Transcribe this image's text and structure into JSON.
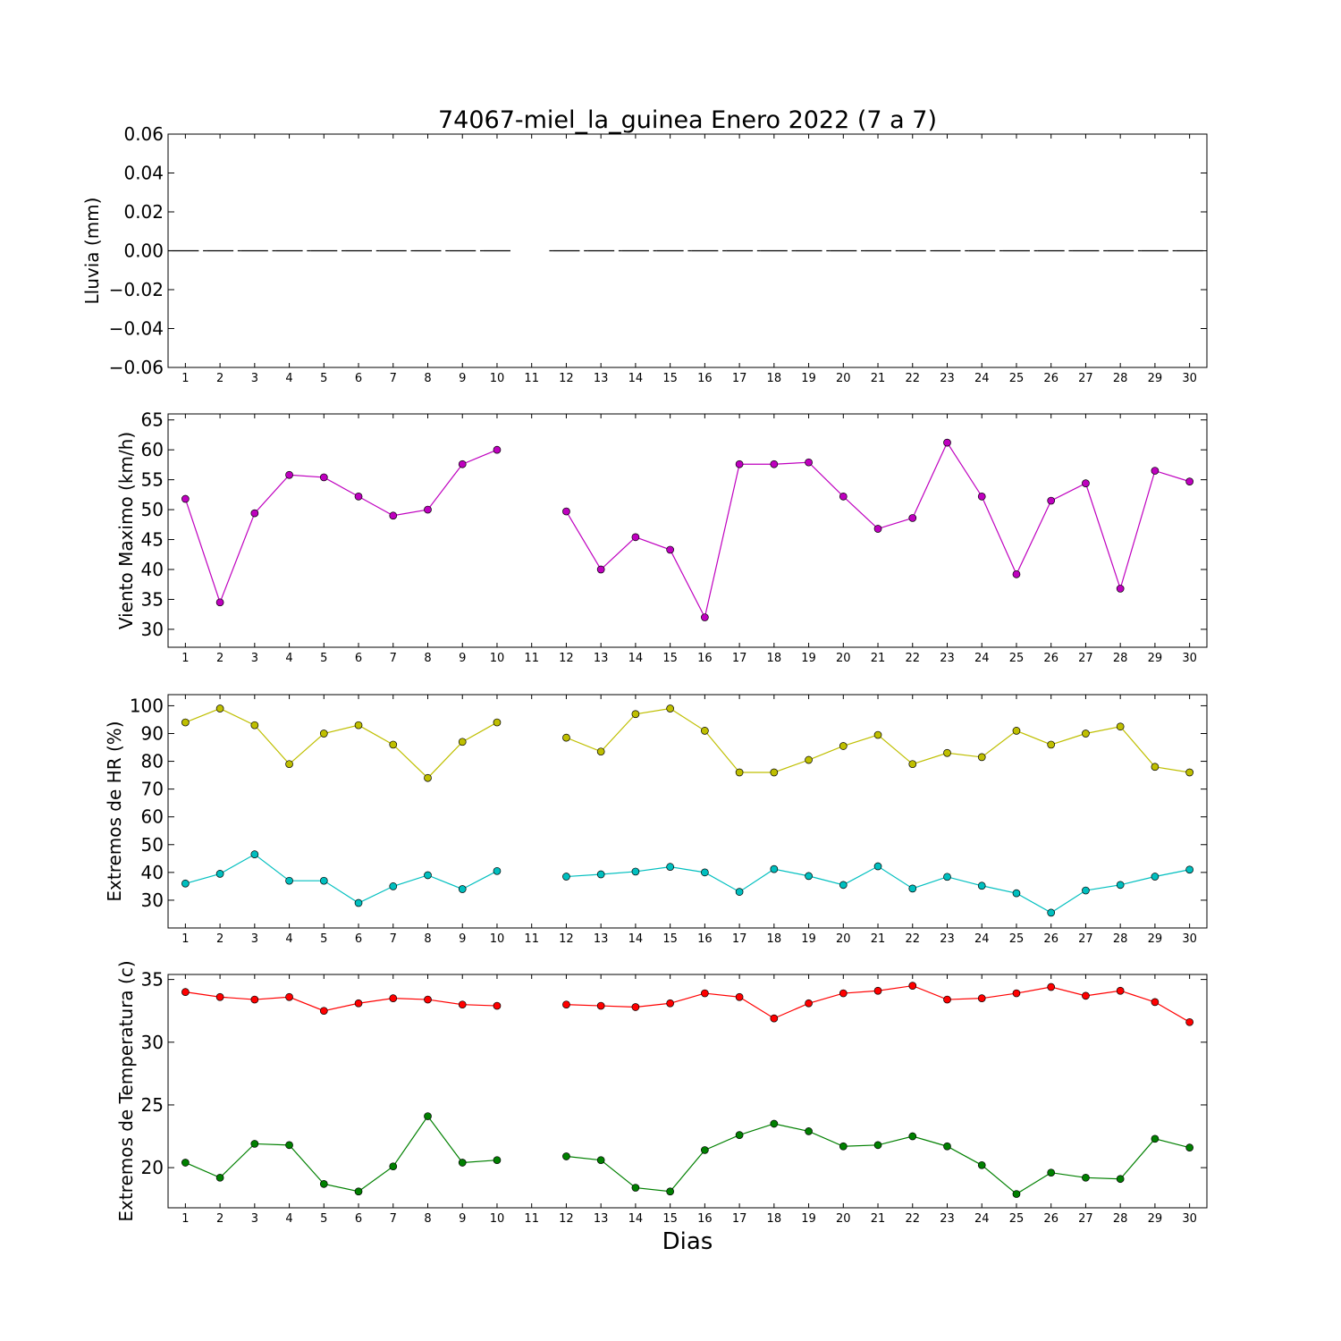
{
  "figure": {
    "title": "74067-miel_la_guinea Enero 2022  (7 a 7)",
    "xlabel": "Dias"
  },
  "chart_data": [
    {
      "type": "bar",
      "ylabel": "Lluvia (mm)",
      "categories": [
        1,
        2,
        3,
        4,
        5,
        6,
        7,
        8,
        9,
        10,
        11,
        12,
        13,
        14,
        15,
        16,
        17,
        18,
        19,
        20,
        21,
        22,
        23,
        24,
        25,
        26,
        27,
        28,
        29,
        30
      ],
      "ylim": [
        -0.06,
        0.06
      ],
      "yticks": [
        -0.06,
        -0.04,
        -0.02,
        0.0,
        0.02,
        0.04,
        0.06
      ],
      "ytick_labels": [
        "−0.06",
        "−0.04",
        "−0.02",
        "0.00",
        "0.02",
        "0.04",
        "0.06"
      ],
      "series": [
        {
          "color": "#000000",
          "values": [
            0,
            0,
            0,
            0,
            0,
            0,
            0,
            0,
            0,
            0,
            null,
            0,
            0,
            0,
            0,
            0,
            0,
            0,
            0,
            0,
            0,
            0,
            0,
            0,
            0,
            0,
            0,
            0,
            0,
            0
          ]
        }
      ]
    },
    {
      "type": "line",
      "ylabel": "Viento Maximo (km/h)",
      "x": [
        1,
        2,
        3,
        4,
        5,
        6,
        7,
        8,
        9,
        10,
        11,
        12,
        13,
        14,
        15,
        16,
        17,
        18,
        19,
        20,
        21,
        22,
        23,
        24,
        25,
        26,
        27,
        28,
        29,
        30
      ],
      "ylim": [
        27,
        66
      ],
      "yticks": [
        30,
        35,
        40,
        45,
        50,
        55,
        60,
        65
      ],
      "ytick_labels": [
        "30",
        "35",
        "40",
        "45",
        "50",
        "55",
        "60",
        "65"
      ],
      "series": [
        {
          "color": "#bf00bf",
          "values": [
            51.8,
            34.5,
            49.4,
            55.8,
            55.4,
            52.2,
            49.0,
            50.0,
            57.6,
            60.0,
            null,
            49.7,
            40.0,
            45.4,
            43.3,
            32.0,
            57.6,
            57.6,
            57.9,
            52.2,
            46.8,
            48.6,
            61.2,
            52.2,
            39.2,
            51.5,
            54.4,
            36.8,
            56.5,
            54.7
          ]
        }
      ]
    },
    {
      "type": "line",
      "ylabel": "Extremos de HR (%)",
      "x": [
        1,
        2,
        3,
        4,
        5,
        6,
        7,
        8,
        9,
        10,
        11,
        12,
        13,
        14,
        15,
        16,
        17,
        18,
        19,
        20,
        21,
        22,
        23,
        24,
        25,
        26,
        27,
        28,
        29,
        30
      ],
      "ylim": [
        20,
        104
      ],
      "yticks": [
        30,
        40,
        50,
        60,
        70,
        80,
        90,
        100
      ],
      "ytick_labels": [
        "30",
        "40",
        "50",
        "60",
        "70",
        "80",
        "90",
        "100"
      ],
      "series": [
        {
          "color": "#bfbf00",
          "values": [
            94,
            99,
            93,
            79,
            90,
            93,
            86,
            74,
            87,
            94,
            null,
            88.5,
            83.5,
            97,
            99,
            91,
            76,
            76,
            80.5,
            85.5,
            89.5,
            79,
            83,
            81.5,
            91,
            86,
            90,
            92.5,
            78,
            76
          ]
        },
        {
          "color": "#00bfbf",
          "values": [
            36,
            39.5,
            46.5,
            37,
            37,
            29,
            35,
            39,
            34,
            40.5,
            null,
            38.5,
            39.3,
            40.3,
            42,
            40,
            33,
            41.2,
            38.7,
            35.5,
            42.2,
            34.2,
            38.4,
            35.2,
            32.5,
            25.5,
            33.5,
            35.5,
            38.5,
            41
          ]
        }
      ]
    },
    {
      "type": "line",
      "ylabel": "Extremos de Temperatura (c)",
      "x": [
        1,
        2,
        3,
        4,
        5,
        6,
        7,
        8,
        9,
        10,
        11,
        12,
        13,
        14,
        15,
        16,
        17,
        18,
        19,
        20,
        21,
        22,
        23,
        24,
        25,
        26,
        27,
        28,
        29,
        30
      ],
      "ylim": [
        16.8,
        35.4
      ],
      "yticks": [
        20,
        25,
        30,
        35
      ],
      "ytick_labels": [
        "20",
        "25",
        "30",
        "35"
      ],
      "series": [
        {
          "color": "#ff0000",
          "values": [
            34.0,
            33.6,
            33.4,
            33.6,
            32.5,
            33.1,
            33.5,
            33.4,
            33.0,
            32.9,
            null,
            33.0,
            32.9,
            32.8,
            33.1,
            33.9,
            33.6,
            31.9,
            33.1,
            33.9,
            34.1,
            34.5,
            33.4,
            33.5,
            33.9,
            34.4,
            33.7,
            34.1,
            33.2,
            31.6
          ]
        },
        {
          "color": "#008000",
          "values": [
            20.4,
            19.2,
            21.9,
            21.8,
            18.7,
            18.1,
            20.1,
            24.1,
            20.4,
            20.6,
            null,
            20.9,
            20.6,
            18.4,
            18.1,
            21.4,
            22.6,
            23.5,
            22.9,
            21.7,
            21.8,
            22.5,
            21.7,
            20.2,
            17.9,
            19.6,
            19.2,
            19.1,
            22.3,
            21.6
          ]
        }
      ]
    }
  ]
}
